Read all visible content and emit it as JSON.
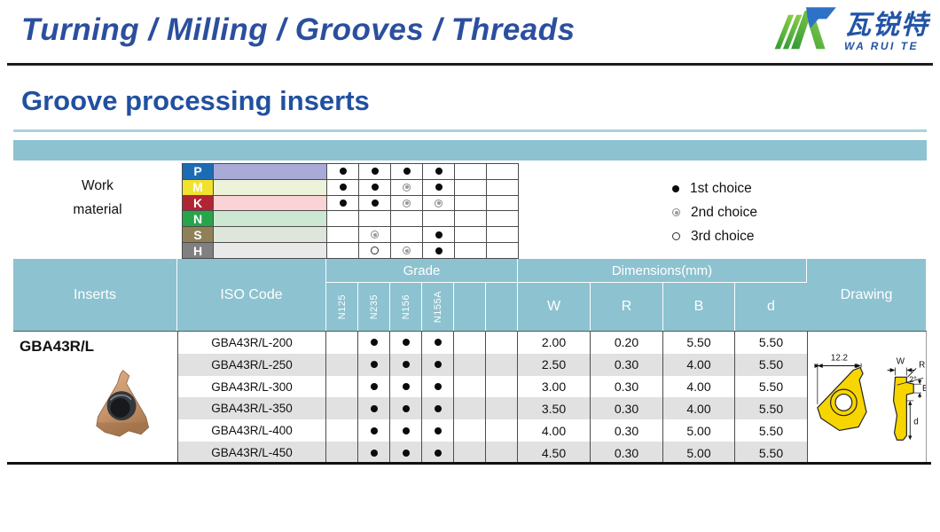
{
  "header": {
    "title": "Turning / Milling / Grooves / Threads",
    "logo": {
      "cn": "瓦锐特",
      "en": "WA RUI TE"
    }
  },
  "page_title": "Groove processing inserts",
  "work_material": {
    "label_line1": "Work",
    "label_line2": "material",
    "rows": [
      {
        "code": "P",
        "label_color": "#1c6cb5",
        "band_color": "#a8abd7",
        "marks": [
          "1st",
          "1st",
          "1st",
          "1st",
          "",
          ""
        ]
      },
      {
        "code": "M",
        "label_color": "#f1e130",
        "band_color": "#edf3d8",
        "marks": [
          "1st",
          "1st",
          "2nd",
          "1st",
          "",
          ""
        ]
      },
      {
        "code": "K",
        "label_color": "#b02533",
        "band_color": "#f9d3d5",
        "marks": [
          "1st",
          "1st",
          "2nd",
          "2nd",
          "",
          ""
        ]
      },
      {
        "code": "N",
        "label_color": "#28a44b",
        "band_color": "#cde8d2",
        "marks": [
          "",
          "",
          "",
          "",
          "",
          ""
        ]
      },
      {
        "code": "S",
        "label_color": "#8f8155",
        "band_color": "#dee5da",
        "marks": [
          "",
          "2nd",
          "",
          "1st",
          "",
          ""
        ]
      },
      {
        "code": "H",
        "label_color": "#808080",
        "band_color": "#e9e9e9",
        "marks": [
          "",
          "3rd",
          "2nd",
          "1st",
          "",
          ""
        ]
      }
    ]
  },
  "legend": [
    {
      "symbol": "1st",
      "label": "1st choice"
    },
    {
      "symbol": "2nd",
      "label": "2nd choice"
    },
    {
      "symbol": "3rd",
      "label": "3rd choice"
    }
  ],
  "table": {
    "inserts_header": "Inserts",
    "iso_header": "ISO Code",
    "grade_header": "Grade",
    "dimensions_header": "Dimensions(mm)",
    "drawing_header": "Drawing",
    "grade_columns": [
      "N125",
      "N235",
      "N156",
      "N155A",
      "",
      ""
    ],
    "dimension_columns": [
      "W",
      "R",
      "B",
      "d"
    ],
    "product_name": "GBA43R/L",
    "rows": [
      {
        "iso": "GBA43R/L-200",
        "marks": [
          "",
          "1st",
          "1st",
          "1st",
          "",
          ""
        ],
        "dims": [
          "2.00",
          "0.20",
          "5.50",
          "5.50"
        ]
      },
      {
        "iso": "GBA43R/L-250",
        "marks": [
          "",
          "1st",
          "1st",
          "1st",
          "",
          ""
        ],
        "dims": [
          "2.50",
          "0.30",
          "4.00",
          "5.50"
        ]
      },
      {
        "iso": "GBA43R/L-300",
        "marks": [
          "",
          "1st",
          "1st",
          "1st",
          "",
          ""
        ],
        "dims": [
          "3.00",
          "0.30",
          "4.00",
          "5.50"
        ]
      },
      {
        "iso": "GBA43R/L-350",
        "marks": [
          "",
          "1st",
          "1st",
          "1st",
          "",
          ""
        ],
        "dims": [
          "3.50",
          "0.30",
          "4.00",
          "5.50"
        ]
      },
      {
        "iso": "GBA43R/L-400",
        "marks": [
          "",
          "1st",
          "1st",
          "1st",
          "",
          ""
        ],
        "dims": [
          "4.00",
          "0.30",
          "5.00",
          "5.50"
        ]
      },
      {
        "iso": "GBA43R/L-450",
        "marks": [
          "",
          "1st",
          "1st",
          "1st",
          "",
          ""
        ],
        "dims": [
          "4.50",
          "0.30",
          "5.00",
          "5.50"
        ]
      }
    ]
  },
  "drawing": {
    "width": "12.2",
    "w": "W",
    "r": "R",
    "angle": "2°",
    "b": "B",
    "d": "d"
  },
  "colors": {
    "teal_header": "#8dc2d0",
    "title_blue": "#2150a0",
    "brand_blue": "#2b4f9e",
    "stripe_grey": "#e1e1e1",
    "insert_copper": "#c9956c",
    "drawing_yellow": "#f7d500",
    "logo_green": "#55b330",
    "logo_blue": "#2e71c6"
  }
}
